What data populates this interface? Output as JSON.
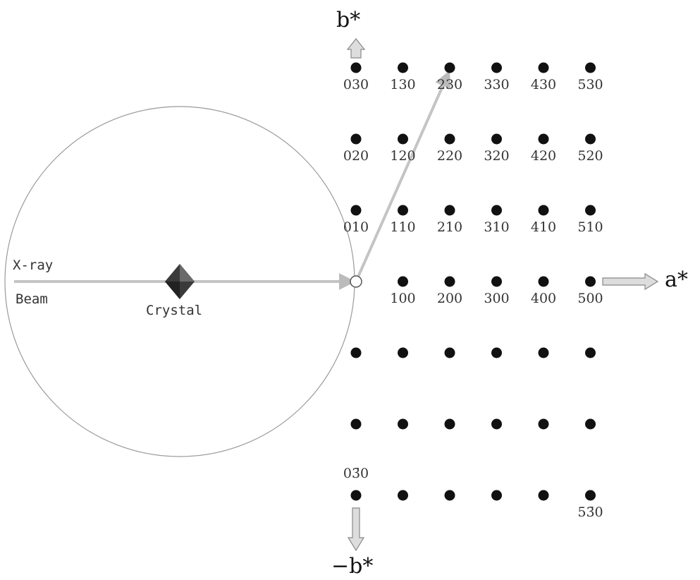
{
  "axes": {
    "b_star": "b*",
    "minus_b_star": "−b*",
    "a_star": "a*"
  },
  "labels": {
    "xray": "X-ray",
    "beam": "Beam",
    "crystal": "Crystal"
  },
  "lattice": {
    "h_values": [
      0,
      1,
      2,
      3,
      4,
      5
    ],
    "k_values": [
      3,
      2,
      1,
      0,
      -1,
      -2,
      -3
    ],
    "points": [
      {
        "h": 0,
        "k": 3,
        "label": "030"
      },
      {
        "h": 1,
        "k": 3,
        "label": "130"
      },
      {
        "h": 2,
        "k": 3,
        "label": "230"
      },
      {
        "h": 3,
        "k": 3,
        "label": "330"
      },
      {
        "h": 4,
        "k": 3,
        "label": "430"
      },
      {
        "h": 5,
        "k": 3,
        "label": "530"
      },
      {
        "h": 0,
        "k": 2,
        "label": "020"
      },
      {
        "h": 1,
        "k": 2,
        "label": "120"
      },
      {
        "h": 2,
        "k": 2,
        "label": "220"
      },
      {
        "h": 3,
        "k": 2,
        "label": "320"
      },
      {
        "h": 4,
        "k": 2,
        "label": "420"
      },
      {
        "h": 5,
        "k": 2,
        "label": "520"
      },
      {
        "h": 0,
        "k": 1,
        "label": "010"
      },
      {
        "h": 1,
        "k": 1,
        "label": "110"
      },
      {
        "h": 2,
        "k": 1,
        "label": "210"
      },
      {
        "h": 3,
        "k": 1,
        "label": "310"
      },
      {
        "h": 4,
        "k": 1,
        "label": "410"
      },
      {
        "h": 5,
        "k": 1,
        "label": "510"
      },
      {
        "h": 0,
        "k": 0,
        "label": "",
        "origin": true
      },
      {
        "h": 1,
        "k": 0,
        "label": "100"
      },
      {
        "h": 2,
        "k": 0,
        "label": "200"
      },
      {
        "h": 3,
        "k": 0,
        "label": "300"
      },
      {
        "h": 4,
        "k": 0,
        "label": "400"
      },
      {
        "h": 5,
        "k": 0,
        "label": "500"
      },
      {
        "h": 0,
        "k": -1,
        "label": ""
      },
      {
        "h": 1,
        "k": -1,
        "label": ""
      },
      {
        "h": 2,
        "k": -1,
        "label": ""
      },
      {
        "h": 3,
        "k": -1,
        "label": ""
      },
      {
        "h": 4,
        "k": -1,
        "label": ""
      },
      {
        "h": 5,
        "k": -1,
        "label": ""
      },
      {
        "h": 0,
        "k": -2,
        "label": ""
      },
      {
        "h": 1,
        "k": -2,
        "label": ""
      },
      {
        "h": 2,
        "k": -2,
        "label": ""
      },
      {
        "h": 3,
        "k": -2,
        "label": ""
      },
      {
        "h": 4,
        "k": -2,
        "label": ""
      },
      {
        "h": 5,
        "k": -2,
        "label": ""
      },
      {
        "h": 0,
        "k": -3,
        "label": "03̄0",
        "label_above": true
      },
      {
        "h": 1,
        "k": -3,
        "label": ""
      },
      {
        "h": 2,
        "k": -3,
        "label": ""
      },
      {
        "h": 3,
        "k": -3,
        "label": ""
      },
      {
        "h": 4,
        "k": -3,
        "label": ""
      },
      {
        "h": 5,
        "k": -3,
        "label": "53̄0"
      }
    ]
  },
  "diffracted_beam_target": {
    "h": 2,
    "k": 3
  }
}
